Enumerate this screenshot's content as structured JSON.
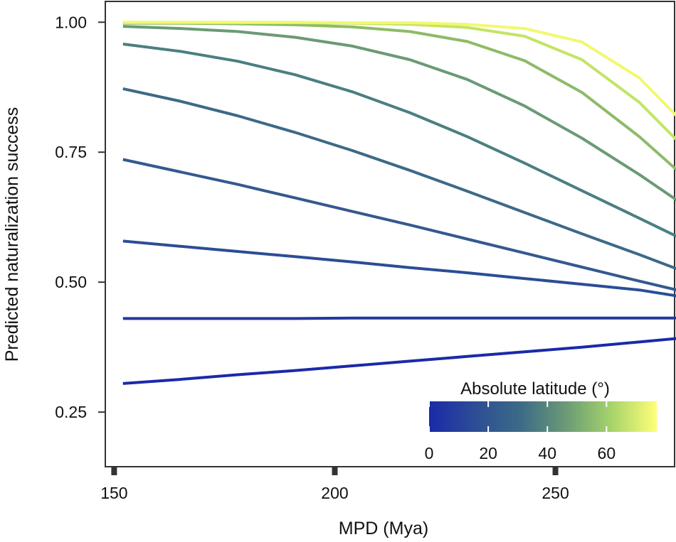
{
  "chart_data": {
    "type": "line",
    "xlabel": "MPD (Mya)",
    "ylabel": "Predicted naturalization success",
    "xlim": [
      148,
      277
    ],
    "ylim": [
      0.145,
      1.04
    ],
    "x_ticks": [
      150,
      200,
      250
    ],
    "x_tick_labels": [
      "150",
      "200",
      "250"
    ],
    "y_ticks": [
      0.25,
      0.5,
      0.75,
      1.0
    ],
    "y_tick_labels": [
      "0.25",
      "0.50",
      "0.75",
      "1.00"
    ],
    "x": [
      152,
      165,
      178,
      191,
      204,
      217,
      230,
      243,
      256,
      269,
      278
    ],
    "series": [
      {
        "name": "0",
        "latitude": 0,
        "color": "#1a2aa8",
        "values": [
          0.305,
          0.313,
          0.322,
          0.33,
          0.339,
          0.348,
          0.357,
          0.366,
          0.375,
          0.385,
          0.392
        ]
      },
      {
        "name": "8.75",
        "latitude": 8.75,
        "color": "#23399e",
        "values": [
          0.43,
          0.43,
          0.43,
          0.43,
          0.431,
          0.431,
          0.431,
          0.431,
          0.431,
          0.431,
          0.431
        ]
      },
      {
        "name": "17.5",
        "latitude": 17.5,
        "color": "#2c4d96",
        "values": [
          0.579,
          0.569,
          0.559,
          0.549,
          0.539,
          0.528,
          0.518,
          0.507,
          0.496,
          0.485,
          0.473
        ]
      },
      {
        "name": "26.25",
        "latitude": 26.25,
        "color": "#34598f",
        "values": [
          0.736,
          0.712,
          0.688,
          0.662,
          0.636,
          0.61,
          0.583,
          0.556,
          0.529,
          0.502,
          0.484
        ]
      },
      {
        "name": "35",
        "latitude": 35,
        "color": "#3c6a87",
        "values": [
          0.872,
          0.848,
          0.82,
          0.788,
          0.753,
          0.715,
          0.675,
          0.634,
          0.593,
          0.553,
          0.524
        ]
      },
      {
        "name": "43.75",
        "latitude": 43.75,
        "color": "#4b7f80",
        "values": [
          0.958,
          0.944,
          0.925,
          0.899,
          0.866,
          0.826,
          0.78,
          0.729,
          0.676,
          0.623,
          0.586
        ]
      },
      {
        "name": "52.5",
        "latitude": 52.5,
        "color": "#6a9a76",
        "values": [
          0.992,
          0.988,
          0.982,
          0.971,
          0.954,
          0.928,
          0.89,
          0.839,
          0.777,
          0.707,
          0.655
        ]
      },
      {
        "name": "61.25",
        "latitude": 61.25,
        "color": "#8dbb68",
        "values": [
          0.998,
          0.998,
          0.997,
          0.995,
          0.991,
          0.982,
          0.963,
          0.926,
          0.865,
          0.78,
          0.712
        ]
      },
      {
        "name": "70",
        "latitude": 70,
        "color": "#c3e466",
        "values": [
          0.999,
          0.999,
          0.999,
          0.999,
          0.998,
          0.996,
          0.99,
          0.973,
          0.928,
          0.846,
          0.769
        ]
      },
      {
        "name": "75",
        "latitude": 75,
        "color": "#f2f870",
        "values": [
          1.0,
          1.0,
          1.0,
          1.0,
          0.999,
          0.999,
          0.996,
          0.988,
          0.962,
          0.893,
          0.815
        ]
      }
    ],
    "legend": {
      "title": "Absolute latitude (°)",
      "type": "colorbar",
      "placement": "bottom-right",
      "range": [
        0,
        77
      ],
      "ticks": [
        0,
        20,
        40,
        60
      ],
      "tick_labels": [
        "0",
        "20",
        "40",
        "60"
      ],
      "colors": [
        "#1a2aa8",
        "#2c4d96",
        "#3c6a87",
        "#6a9a76",
        "#a6d36a",
        "#ffff78"
      ]
    }
  }
}
